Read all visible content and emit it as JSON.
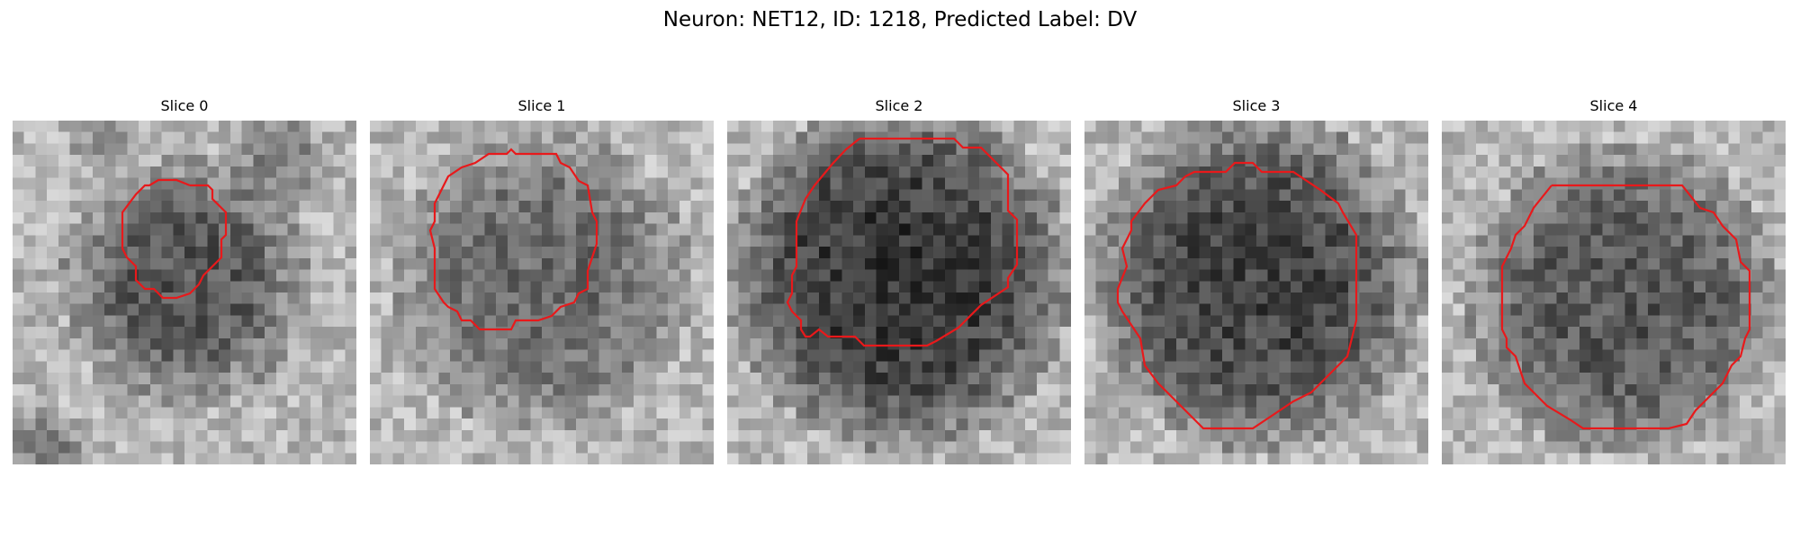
{
  "figure": {
    "title": "Neuron: NET12, ID: 1218, Predicted Label: DV"
  },
  "contour_color": "#e8191b",
  "panels": [
    {
      "title": "Slice 0"
    },
    {
      "title": "Slice 1"
    },
    {
      "title": "Slice 2"
    },
    {
      "title": "Slice 3"
    },
    {
      "title": "Slice 4"
    }
  ]
}
